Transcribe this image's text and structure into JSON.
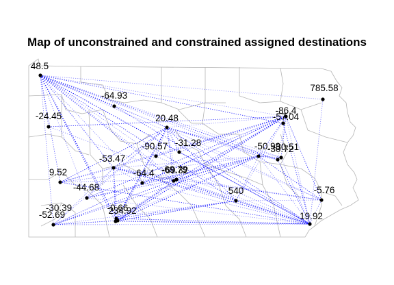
{
  "title": "Map of unconstrained and constrained assigned destinations",
  "colors": {
    "flow_line": "#0000ff",
    "county_border": "#b5b5b5",
    "point": "#000000"
  },
  "points": [
    {
      "id": "p01",
      "label": "48.5"
    },
    {
      "id": "p02",
      "label": "785.58"
    },
    {
      "id": "p03",
      "label": "-64.93"
    },
    {
      "id": "p04",
      "label": "-86.4"
    },
    {
      "id": "p05",
      "label": "-57.04"
    },
    {
      "id": "p06",
      "label": "-24.45"
    },
    {
      "id": "p07",
      "label": "20.48"
    },
    {
      "id": "p08",
      "label": "-90.57"
    },
    {
      "id": "p09",
      "label": "-31.28"
    },
    {
      "id": "p10",
      "label": "-50.99"
    },
    {
      "id": "p11",
      "label": "-30.72"
    },
    {
      "id": "p12",
      "label": "-30.51"
    },
    {
      "id": "p13",
      "label": "-53.47"
    },
    {
      "id": "p14",
      "label": "-64.4"
    },
    {
      "id": "p15",
      "label": "-69.79"
    },
    {
      "id": "p16",
      "label": "-69.32"
    },
    {
      "id": "p17",
      "label": "9.52"
    },
    {
      "id": "p18",
      "label": "-44.68"
    },
    {
      "id": "p19",
      "label": "540"
    },
    {
      "id": "p20",
      "label": "-5.76"
    },
    {
      "id": "p21",
      "label": "-30.39"
    },
    {
      "id": "p22",
      "label": "-0.66"
    },
    {
      "id": "p23",
      "label": "234.92"
    },
    {
      "id": "p24",
      "label": "-52.69"
    },
    {
      "id": "p25",
      "label": "19.92"
    }
  ]
}
